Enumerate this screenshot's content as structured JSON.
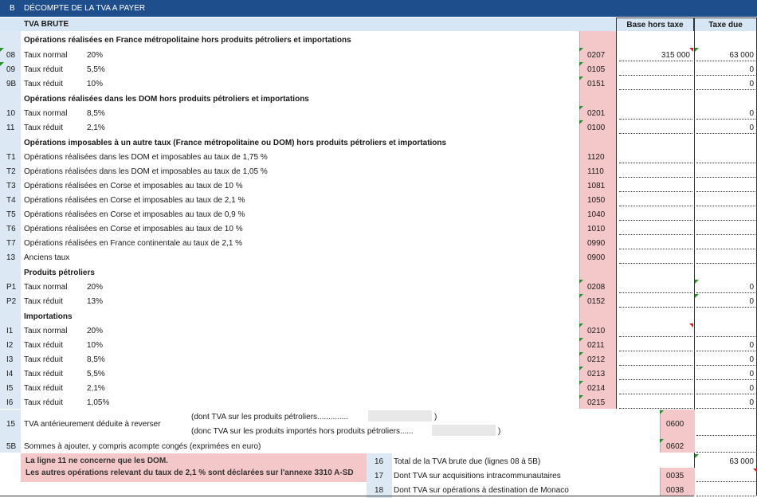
{
  "title": {
    "code": "B",
    "text": "DÉCOMPTE DE LA TVA A PAYER"
  },
  "header": {
    "section": "TVA BRUTE",
    "col_base": "Base hors taxe",
    "col_tax": "Taxe due"
  },
  "sections": {
    "s1": "Opérations réalisées en France métropolitaine hors produits pétroliers et importations",
    "s2": "Opérations réalisées dans les DOM hors produits pétroliers et importations",
    "s3": "Opérations imposables à un autre taux (France métropolitaine ou DOM) hors produits pétroliers et importations",
    "s4": "Produits pétroliers",
    "s5": "Importations"
  },
  "rows": {
    "r08": {
      "num": "08",
      "label": "Taux normal",
      "rate": "20%",
      "code": "0207",
      "base": "315 000",
      "tax": "63 000"
    },
    "r09": {
      "num": "09",
      "label": "Taux réduit",
      "rate": "5,5%",
      "code": "0105",
      "tax": "0"
    },
    "r9b": {
      "num": "9B",
      "label": "Taux réduit",
      "rate": "10%",
      "code": "0151",
      "tax": "0"
    },
    "r10": {
      "num": "10",
      "label": "Taux normal",
      "rate": "8,5%",
      "code": "0201",
      "tax": "0"
    },
    "r11": {
      "num": "11",
      "label": "Taux réduit",
      "rate": "2,1%",
      "code": "0100",
      "tax": "0"
    },
    "t1": {
      "num": "T1",
      "label": "Opérations réalisées dans les DOM et imposables au taux de 1,75 %",
      "code": "1120"
    },
    "t2": {
      "num": "T2",
      "label": "Opérations réalisées dans les DOM et imposables au taux de 1,05 %",
      "code": "1110"
    },
    "t3": {
      "num": "T3",
      "label": "Opérations réalisées en Corse et imposables au taux de 10 %",
      "code": "1081"
    },
    "t4": {
      "num": "T4",
      "label": "Opérations réalisées en Corse et imposables au taux de 2,1 %",
      "code": "1050"
    },
    "t5": {
      "num": "T5",
      "label": "Opérations réalisées en Corse et imposables au taux de 0,9 %",
      "code": "1040"
    },
    "t6": {
      "num": "T6",
      "label": "Opérations réalisées en Corse et imposables au taux de 10 %",
      "code": "1010"
    },
    "t7": {
      "num": "T7",
      "label": "Opérations réalisées en France continentale au taux de 2,1 %",
      "code": "0990"
    },
    "r13": {
      "num": "13",
      "label": "Anciens taux",
      "code": "0900"
    },
    "p1": {
      "num": "P1",
      "label": "Taux normal",
      "rate": "20%",
      "code": "0208",
      "tax": "0"
    },
    "p2": {
      "num": "P2",
      "label": "Taux réduit",
      "rate": "13%",
      "code": "0152",
      "tax": "0"
    },
    "i1": {
      "num": "I1",
      "label": "Taux normal",
      "rate": "20%",
      "code": "0210"
    },
    "i2": {
      "num": "I2",
      "label": "Taux réduit",
      "rate": "10%",
      "code": "0211",
      "tax": "0"
    },
    "i3": {
      "num": "I3",
      "label": "Taux réduit",
      "rate": "8,5%",
      "code": "0212",
      "tax": "0"
    },
    "i4": {
      "num": "I4",
      "label": "Taux réduit",
      "rate": "5,5%",
      "code": "0213",
      "tax": "0"
    },
    "i5": {
      "num": "I5",
      "label": "Taux réduit",
      "rate": "2,1%",
      "code": "0214",
      "tax": "0"
    },
    "i6": {
      "num": "I6",
      "label": "Taux réduit",
      "rate": "1,05%",
      "code": "0215",
      "tax": "0"
    }
  },
  "r15": {
    "num": "15",
    "label": "TVA antérieurement déduite à reverser",
    "sub1": "(dont TVA sur les produits pétroliers..............",
    "sub1_end": ")",
    "sub2": "(donc TVA sur les produits importés hors produits pétroliers......",
    "sub2_end": ")",
    "code": "0600"
  },
  "r5b": {
    "num": "5B",
    "label": "Sommes à ajouter, y compris acompte congés (exprimées en euro)",
    "code": "0602"
  },
  "note": {
    "line1": "La ligne 11 ne concerne que les DOM.",
    "line2": "Les autres opérations relevant du taux de 2,1 % sont déclarées sur l'annexe 3310 A-SD"
  },
  "totals": {
    "r16": {
      "num": "16",
      "label": "Total de la TVA brute due (lignes 08 à 5B)",
      "tax": "63 000"
    },
    "r17": {
      "num": "17",
      "label": "Dont TVA sur acquisitions intracommunautaires",
      "code": "0035"
    },
    "r18": {
      "num": "18",
      "label": "Dont TVA sur opérations à destination de Monaco",
      "code": "0038"
    }
  }
}
